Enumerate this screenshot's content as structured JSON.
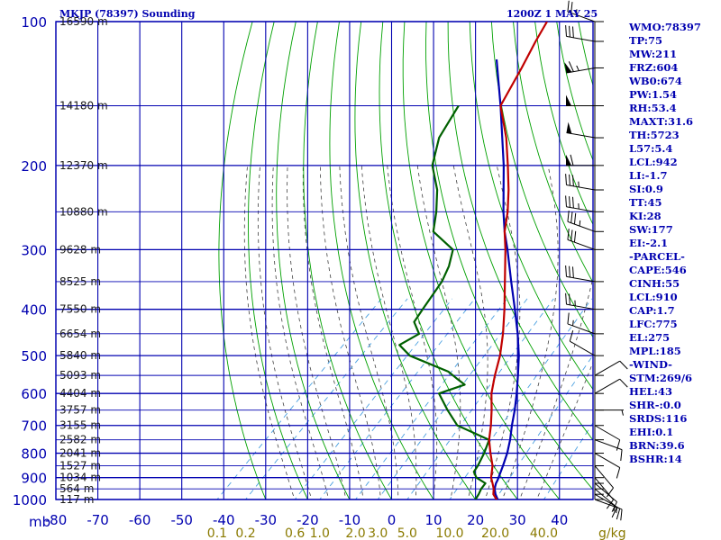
{
  "header": {
    "title": "MKJP (78397) Sounding",
    "datetime": "1200Z  1 MAY 25"
  },
  "indices": [
    "WMO:78397",
    "TP:75",
    "MW:211",
    "FRZ:604",
    "WB0:674",
    "PW:1.54",
    "RH:53.4",
    "MAXT:31.6",
    "TH:5723",
    "L57:5.4",
    "LCL:942",
    "LI:-1.7",
    "SI:0.9",
    "TT:45",
    "KI:28",
    "SW:177",
    "EI:-2.1",
    "-PARCEL-",
    "CAPE:546",
    "CINH:55",
    "LCL:910",
    "CAP:1.7",
    "LFC:775",
    "EL:275",
    "MPL:185",
    "-WIND-",
    "STM:269/6",
    "HEL:43",
    "SHR-:0.0",
    "SRDS:116",
    "EHI:0.1",
    "BRN:39.6",
    "BSHR:14"
  ],
  "chart_data": {
    "type": "skew-t",
    "pressure_axis": {
      "unit": "mb",
      "ticks": [
        100,
        200,
        300,
        400,
        500,
        600,
        700,
        800,
        900,
        1000
      ],
      "range": [
        100,
        1000
      ],
      "scale": "log"
    },
    "temperature_axis": {
      "ticks": [
        -80,
        -70,
        -60,
        -50,
        -40,
        -30,
        -20,
        -10,
        0,
        10,
        20,
        30,
        40
      ],
      "range": [
        -80,
        48
      ]
    },
    "mixing_ratio_labels": [
      "0.1",
      "0.2",
      "0.6",
      "1.0",
      "2.0",
      "3.0",
      "5.0",
      "10.0",
      "20.0",
      "40.0"
    ],
    "mixing_ratio_unit": "g/kg",
    "height_labels": [
      {
        "p": 100,
        "label": "16590 m"
      },
      {
        "p": 150,
        "label": "14180 m"
      },
      {
        "p": 200,
        "label": "12370 m"
      },
      {
        "p": 250,
        "label": "10880 m"
      },
      {
        "p": 300,
        "label": "9628 m"
      },
      {
        "p": 350,
        "label": "8525 m"
      },
      {
        "p": 400,
        "label": "7550 m"
      },
      {
        "p": 450,
        "label": "6654 m"
      },
      {
        "p": 500,
        "label": "5840 m"
      },
      {
        "p": 550,
        "label": "5093 m"
      },
      {
        "p": 600,
        "label": "4404 m"
      },
      {
        "p": 650,
        "label": "3757 m"
      },
      {
        "p": 700,
        "label": "3155 m"
      },
      {
        "p": 750,
        "label": "2582 m"
      },
      {
        "p": 800,
        "label": "2041 m"
      },
      {
        "p": 850,
        "label": "1527 m"
      },
      {
        "p": 900,
        "label": "1034 m"
      },
      {
        "p": 950,
        "label": "564 m"
      },
      {
        "p": 1000,
        "label": "117 m"
      }
    ],
    "temperature_profile": [
      [
        1010,
        26
      ],
      [
        1000,
        25
      ],
      [
        975,
        23
      ],
      [
        950,
        21.8
      ],
      [
        925,
        20.2
      ],
      [
        900,
        18.5
      ],
      [
        850,
        16
      ],
      [
        800,
        12.5
      ],
      [
        750,
        9
      ],
      [
        700,
        6
      ],
      [
        650,
        2.5
      ],
      [
        600,
        -1.5
      ],
      [
        550,
        -5
      ],
      [
        500,
        -8.5
      ],
      [
        450,
        -13
      ],
      [
        400,
        -18.5
      ],
      [
        350,
        -25
      ],
      [
        300,
        -32.5
      ],
      [
        275,
        -37
      ],
      [
        250,
        -41
      ],
      [
        225,
        -46
      ],
      [
        200,
        -52
      ],
      [
        175,
        -59
      ],
      [
        150,
        -68
      ],
      [
        125,
        -72
      ],
      [
        110,
        -75
      ],
      [
        100,
        -77
      ]
    ],
    "dewpoint_profile": [
      [
        1000,
        20
      ],
      [
        975,
        19.5
      ],
      [
        950,
        18.8
      ],
      [
        925,
        18.5
      ],
      [
        900,
        15
      ],
      [
        875,
        13
      ],
      [
        850,
        12.5
      ],
      [
        800,
        11
      ],
      [
        750,
        9
      ],
      [
        700,
        -2
      ],
      [
        650,
        -8
      ],
      [
        600,
        -14
      ],
      [
        575,
        -10
      ],
      [
        560,
        -13
      ],
      [
        540,
        -17
      ],
      [
        500,
        -30
      ],
      [
        475,
        -35
      ],
      [
        450,
        -33
      ],
      [
        425,
        -37
      ],
      [
        400,
        -38
      ],
      [
        350,
        -40
      ],
      [
        325,
        -42
      ],
      [
        300,
        -45
      ],
      [
        275,
        -54
      ],
      [
        250,
        -58
      ],
      [
        225,
        -63
      ],
      [
        200,
        -70
      ],
      [
        175,
        -75
      ],
      [
        150,
        -78
      ]
    ],
    "parcel_profile": [
      [
        1010,
        26
      ],
      [
        975,
        23.5
      ],
      [
        950,
        22
      ],
      [
        925,
        21
      ],
      [
        910,
        20.6
      ],
      [
        850,
        18.5
      ],
      [
        800,
        16.5
      ],
      [
        750,
        14
      ],
      [
        700,
        11
      ],
      [
        650,
        8
      ],
      [
        600,
        4.5
      ],
      [
        550,
        0.5
      ],
      [
        500,
        -4
      ],
      [
        450,
        -9.5
      ],
      [
        400,
        -16
      ],
      [
        350,
        -23.5
      ],
      [
        300,
        -32
      ],
      [
        275,
        -37
      ],
      [
        250,
        -42
      ],
      [
        200,
        -53
      ],
      [
        150,
        -68
      ],
      [
        120,
        -80
      ]
    ],
    "wind_barbs": [
      {
        "p": 1000,
        "dir": 110,
        "kt": 15
      },
      {
        "p": 975,
        "dir": 120,
        "kt": 15
      },
      {
        "p": 950,
        "dir": 130,
        "kt": 10
      },
      {
        "p": 925,
        "dir": 130,
        "kt": 10
      },
      {
        "p": 900,
        "dir": 140,
        "kt": 10
      },
      {
        "p": 850,
        "dir": 140,
        "kt": 10
      },
      {
        "p": 800,
        "dir": 120,
        "kt": 10
      },
      {
        "p": 750,
        "dir": 110,
        "kt": 10
      },
      {
        "p": 700,
        "dir": 120,
        "kt": 10
      },
      {
        "p": 650,
        "dir": 90,
        "kt": 5
      },
      {
        "p": 600,
        "dir": 60,
        "kt": 10
      },
      {
        "p": 550,
        "dir": 60,
        "kt": 10
      },
      {
        "p": 500,
        "dir": 300,
        "kt": 10
      },
      {
        "p": 450,
        "dir": 290,
        "kt": 15
      },
      {
        "p": 400,
        "dir": 280,
        "kt": 25
      },
      {
        "p": 350,
        "dir": 280,
        "kt": 30
      },
      {
        "p": 300,
        "dir": 290,
        "kt": 30
      },
      {
        "p": 275,
        "dir": 290,
        "kt": 35
      },
      {
        "p": 250,
        "dir": 280,
        "kt": 35
      },
      {
        "p": 225,
        "dir": 280,
        "kt": 35
      },
      {
        "p": 200,
        "dir": 270,
        "kt": 60
      },
      {
        "p": 175,
        "dir": 280,
        "kt": 50
      },
      {
        "p": 150,
        "dir": 270,
        "kt": 50
      },
      {
        "p": 125,
        "dir": 260,
        "kt": 65
      },
      {
        "p": 110,
        "dir": 280,
        "kt": 30
      },
      {
        "p": 100,
        "dir": 290,
        "kt": 25
      }
    ],
    "colors": {
      "grid": "#0000b0",
      "dry_adiabat": "#00a000",
      "moist_adiabat": "#404040",
      "mixing_ratio": "#4aa0e0",
      "temperature": "#c00000",
      "dewpoint": "#006000",
      "parcel": "#0000b0",
      "mixing_ratio_label": "#8a7a00"
    }
  }
}
